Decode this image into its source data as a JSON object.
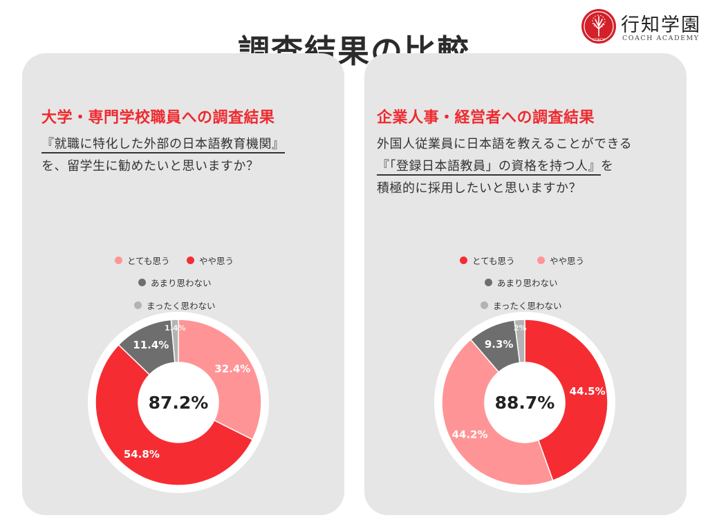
{
  "main_title": "調査結果の比較",
  "logo": {
    "name": "行知学園",
    "sub": "COACH ACADEMY",
    "badge_text": "COACH"
  },
  "colors": {
    "red": "#f52d33",
    "pink": "#ff9496",
    "dark_gray": "#6e6e6e",
    "light_gray": "#b3b3b3",
    "heading": "#ee2a2f",
    "panel": "#e6e6e6"
  },
  "panels": [
    {
      "heading": "大学・専門学校職員への調査結果",
      "question_lines": [
        "『就職に特化した外部の日本語教育機関』",
        "を、留学生に勧めたいと思いますか？"
      ],
      "legend": [
        {
          "label": "とても思う",
          "color": "#ff9496"
        },
        {
          "label": "やや思う",
          "color": "#f52d33"
        },
        {
          "label": "あまり思わない",
          "color": "#6e6e6e"
        },
        {
          "label": "まったく思わない",
          "color": "#b3b3b3"
        }
      ]
    },
    {
      "heading": "企業人事・経営者への調査結果",
      "question_lines": [
        "外国人従業員に日本語を教えることができる",
        "『「登録日本語教員」の資格を持つ人』",
        "を",
        "積極的に採用したいと思いますか？"
      ],
      "legend": [
        {
          "label": "とても思う",
          "color": "#f52d33"
        },
        {
          "label": "やや思う",
          "color": "#ff9496"
        },
        {
          "label": "あまり思わない",
          "color": "#6e6e6e"
        },
        {
          "label": "まったく思わない",
          "color": "#b3b3b3"
        }
      ]
    }
  ],
  "chart_data": [
    {
      "type": "pie",
      "center_label": "87.2%",
      "categories": [
        "とても思う",
        "やや思う",
        "あまり思わない",
        "まったく思わない"
      ],
      "values": [
        32.4,
        54.8,
        11.4,
        1.4
      ],
      "value_labels": [
        "32.4%",
        "54.8%",
        "11.4%",
        "1.4%"
      ],
      "colors": [
        "#ff9496",
        "#f52d33",
        "#6e6e6e",
        "#b3b3b3"
      ]
    },
    {
      "type": "pie",
      "center_label": "88.7%",
      "categories": [
        "とても思う",
        "やや思う",
        "あまり思わない",
        "まったく思わない"
      ],
      "values": [
        44.5,
        44.2,
        9.3,
        2
      ],
      "value_labels": [
        "44.5%",
        "44.2%",
        "9.3%",
        "2%"
      ],
      "colors": [
        "#f52d33",
        "#ff9496",
        "#6e6e6e",
        "#b3b3b3"
      ]
    }
  ]
}
